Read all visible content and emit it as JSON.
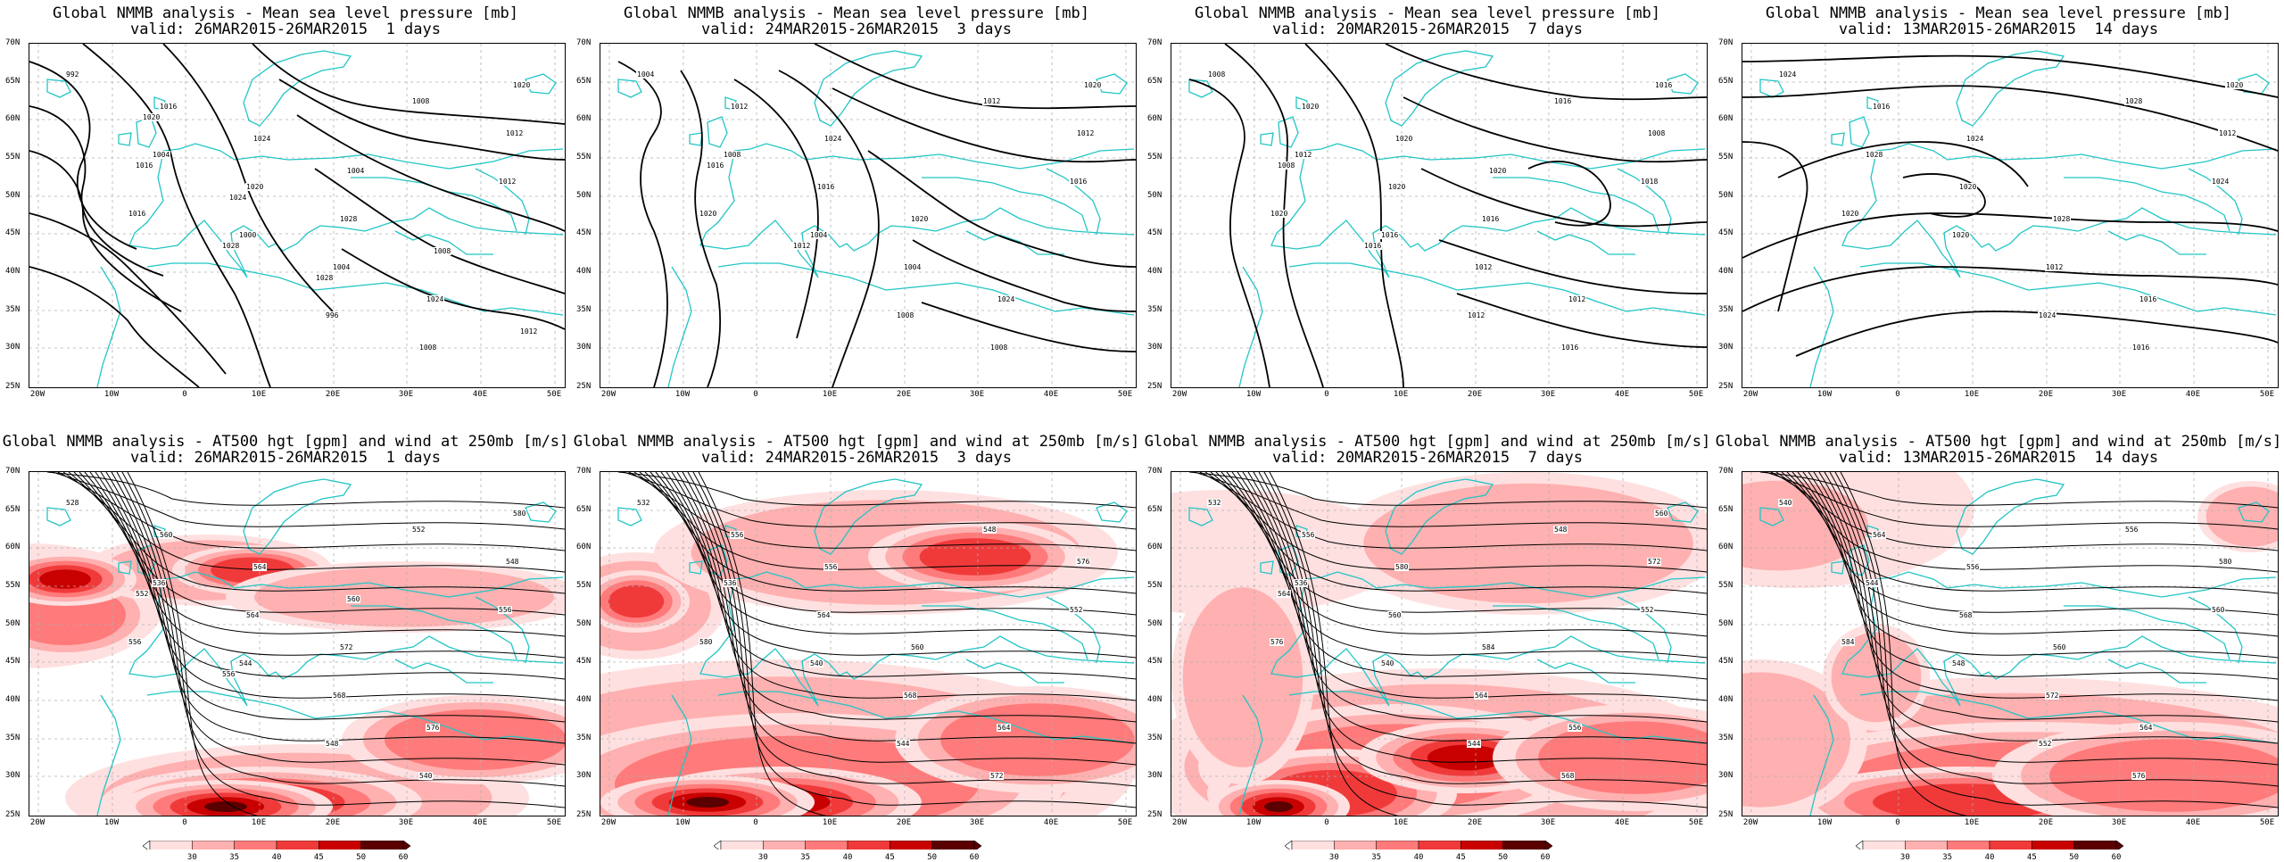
{
  "panels": [
    {
      "line1": "Global NMMB analysis - Mean sea level pressure [mb]",
      "line2": "valid: 26MAR2015-26MAR2015  1 days",
      "labels": [
        "992",
        "1004",
        "1000",
        "996",
        "1008",
        "1012",
        "1016",
        "1020",
        "1004",
        "1008",
        "1012",
        "1016",
        "1024",
        "1028",
        "1024",
        "1020",
        "1016",
        "1028",
        "1004",
        "1008",
        "1012",
        "1020",
        "1024",
        "1028"
      ]
    },
    {
      "line1": "Global NMMB analysis - Mean sea level pressure [mb]",
      "line2": "valid: 24MAR2015-26MAR2015  3 days",
      "labels": [
        "1004",
        "1008",
        "1004",
        "1008",
        "1012",
        "1016",
        "1012",
        "1016",
        "1004",
        "1008",
        "1012",
        "1020",
        "1024",
        "1020",
        "1024",
        "1020",
        "1016",
        "1012"
      ]
    },
    {
      "line1": "Global NMMB analysis - Mean sea level pressure [mb]",
      "line2": "valid: 20MAR2015-26MAR2015  7 days",
      "labels": [
        "1008",
        "1012",
        "1016",
        "1012",
        "1016",
        "1018",
        "1020",
        "1020",
        "1012",
        "1016",
        "1008",
        "1020",
        "1020",
        "1016",
        "1012",
        "1016",
        "1008",
        "1016",
        "1020"
      ]
    },
    {
      "line1": "Global NMMB analysis - Mean sea level pressure [mb]",
      "line2": "valid: 13MAR2015-26MAR2015  14 days",
      "labels": [
        "1024",
        "1028",
        "1020",
        "1024",
        "1028",
        "1024",
        "1016",
        "1020",
        "1012",
        "1016",
        "1012",
        "1020",
        "1024",
        "1028",
        "1016",
        "1020"
      ]
    },
    {
      "line1": "Global NMMB analysis - AT500 hgt [gpm] and wind at 250mb [m/s]",
      "line2": "valid: 26MAR2015-26MAR2015  1 days",
      "labels": [
        "528",
        "536",
        "544",
        "548",
        "552",
        "556",
        "560",
        "564",
        "568",
        "540",
        "548",
        "556",
        "564",
        "572",
        "576",
        "580",
        "552",
        "556",
        "560"
      ]
    },
    {
      "line1": "Global NMMB analysis - AT500 hgt [gpm] and wind at 250mb [m/s]",
      "line2": "valid: 24MAR2015-26MAR2015  3 days",
      "labels": [
        "532",
        "536",
        "540",
        "544",
        "548",
        "552",
        "556",
        "564",
        "568",
        "572",
        "576",
        "580",
        "556",
        "560",
        "564"
      ]
    },
    {
      "line1": "Global NMMB analysis - AT500 hgt [gpm] and wind at 250mb [m/s]",
      "line2": "valid: 20MAR2015-26MAR2015  7 days",
      "labels": [
        "532",
        "536",
        "540",
        "544",
        "548",
        "552",
        "556",
        "560",
        "564",
        "568",
        "572",
        "576",
        "580",
        "584",
        "556",
        "560",
        "564"
      ]
    },
    {
      "line1": "Global NMMB analysis - AT500 hgt [gpm] and wind at 250mb [m/s]",
      "line2": "valid: 13MAR2015-26MAR2015  14 days",
      "labels": [
        "540",
        "544",
        "548",
        "552",
        "556",
        "560",
        "564",
        "568",
        "572",
        "576",
        "580",
        "584",
        "556",
        "560",
        "564"
      ]
    }
  ],
  "lat_labels": [
    "70N",
    "65N",
    "60N",
    "55N",
    "50N",
    "45N",
    "40N",
    "35N",
    "30N",
    "25N"
  ],
  "lon_labels": [
    "20W",
    "10W",
    "0",
    "10E",
    "20E",
    "30E",
    "40E",
    "50E"
  ],
  "colorbar": {
    "labels": [
      "30",
      "35",
      "40",
      "45",
      "50",
      "60"
    ],
    "colors": [
      "#ffe0e0",
      "#ffb0b0",
      "#ff7a7a",
      "#f03a3a",
      "#c80000",
      "#5a0000"
    ]
  },
  "colors": {
    "coast": "#22c5c5",
    "isobar": "#000000",
    "grid": "#b0b0b0"
  }
}
